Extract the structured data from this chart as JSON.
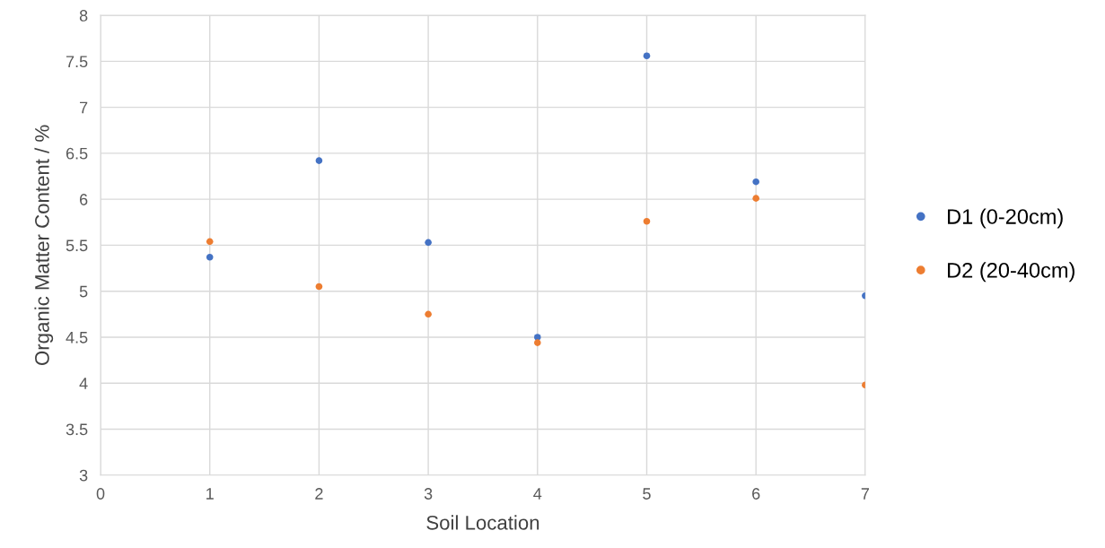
{
  "chart_data": {
    "type": "scatter",
    "xlabel": "Soil Location",
    "ylabel": "Organic Matter Content / %",
    "x": [
      1,
      2,
      3,
      4,
      5,
      6,
      7
    ],
    "series": [
      {
        "name": "D1 (0-20cm)",
        "color": "#4472c4",
        "values": [
          5.37,
          6.42,
          5.53,
          4.5,
          7.56,
          6.19,
          4.95
        ]
      },
      {
        "name": "D2 (20-40cm)",
        "color": "#ed7d31",
        "values": [
          5.54,
          5.05,
          4.75,
          4.44,
          5.76,
          6.01,
          3.98
        ]
      }
    ],
    "xlim": [
      0,
      7
    ],
    "xticks": [
      0,
      1,
      2,
      3,
      4,
      5,
      6,
      7
    ],
    "ylim": [
      3,
      8
    ],
    "yticks": [
      3,
      3.5,
      4,
      4.5,
      5,
      5.5,
      6,
      6.5,
      7,
      7.5,
      8
    ],
    "grid": true,
    "legend": "right",
    "marker": "circle"
  }
}
